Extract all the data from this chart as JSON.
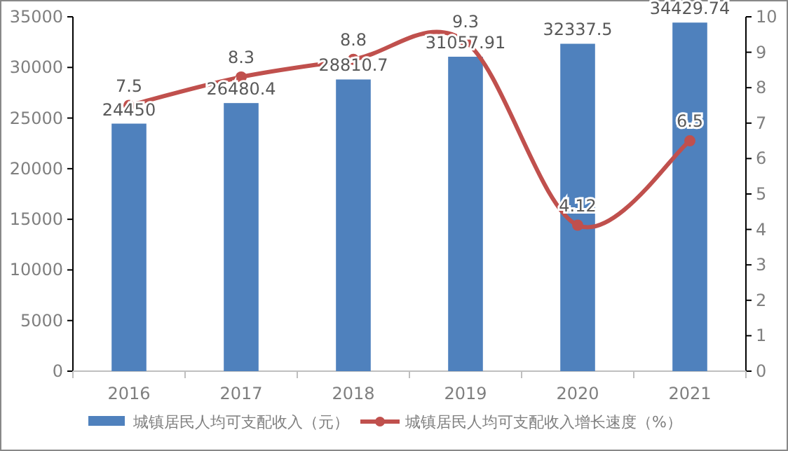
{
  "chart_data": {
    "type": "bar",
    "categories": [
      "2016",
      "2017",
      "2018",
      "2019",
      "2020",
      "2021"
    ],
    "series": [
      {
        "name": "城镇居民人均可支配收入（元）",
        "color": "#4f81bd",
        "values": [
          24450,
          26480.4,
          28810.7,
          31057.91,
          32337.5,
          34429.74
        ]
      },
      {
        "name": "城镇居民人均可支配收入增长速度（%）",
        "type": "line",
        "axis": "y2",
        "color": "#c0504d",
        "values": [
          7.5,
          8.3,
          8.8,
          9.3,
          4.12,
          6.5
        ]
      }
    ],
    "ylim": [
      0,
      35000
    ],
    "yticks": [
      0,
      5000,
      10000,
      15000,
      20000,
      25000,
      30000,
      35000
    ],
    "y2lim": [
      0,
      10
    ],
    "y2ticks": [
      0,
      1,
      2,
      3,
      4,
      5,
      6,
      7,
      8,
      9,
      10
    ],
    "data_labels": true,
    "legend": "bottom",
    "grid": false,
    "marker": "circle",
    "line_style": "solid"
  }
}
